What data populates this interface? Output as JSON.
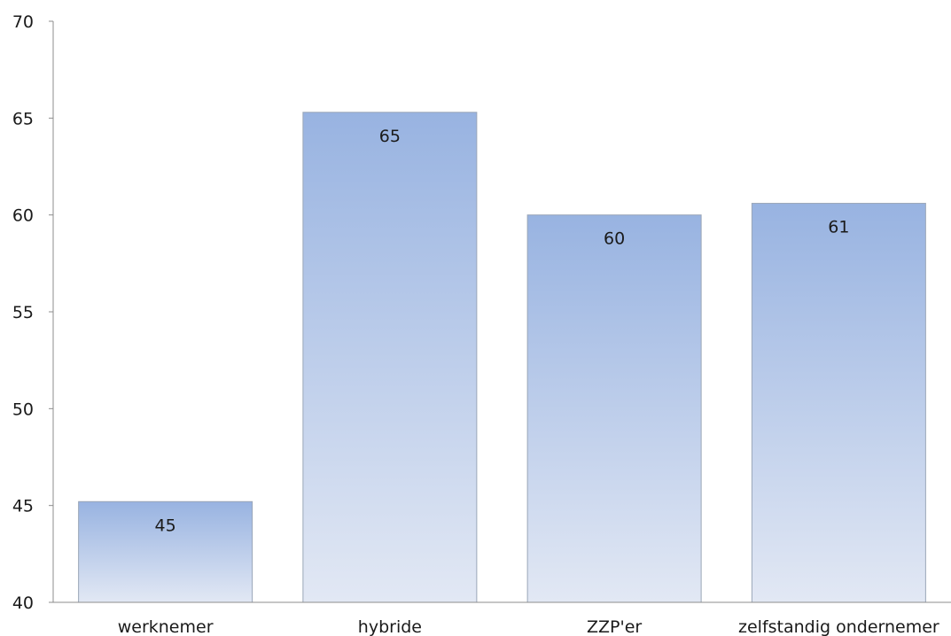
{
  "chart_data": {
    "type": "bar",
    "categories": [
      "werknemer",
      "hybride",
      "ZZP'er",
      "zelfstandig ondernemer"
    ],
    "values": [
      45.2,
      65.3,
      60.0,
      60.6
    ],
    "data_labels": [
      "45",
      "65",
      "60",
      "61"
    ],
    "title": "",
    "xlabel": "",
    "ylabel": "",
    "ylim": [
      40,
      70
    ],
    "yticks": [
      40,
      45,
      50,
      55,
      60,
      65,
      70
    ],
    "grid": false,
    "legend": "none",
    "colors": {
      "bar_top": "#98b3e1",
      "bar_bottom": "#e2e8f4",
      "bar_edge": "#9aa6b8",
      "axis": "#8c8c8c",
      "text": "#1a1a1a"
    }
  }
}
